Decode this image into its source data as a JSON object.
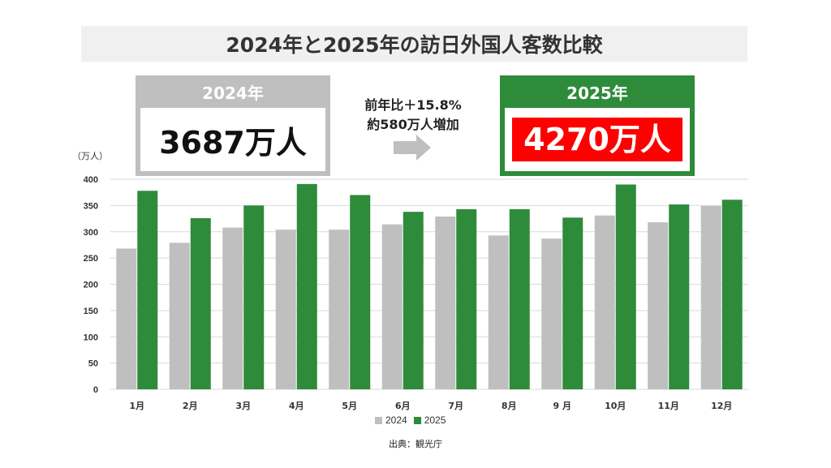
{
  "title": "2024年と2025年の訪日外国人客数比較",
  "box_2024": {
    "year_label": "2024年",
    "total": "3687万人"
  },
  "box_2025": {
    "year_label": "2025年",
    "total": "4270万人"
  },
  "comparison": {
    "line1": "前年比＋15.8%",
    "line2": "約580万人増加"
  },
  "source": "出典：観光庁",
  "colors": {
    "series_2024": "#bfbfbf",
    "series_2025": "#2e8b3a",
    "highlight": "#ff0000"
  },
  "chart_data": {
    "type": "bar",
    "unit_label": "（万人）",
    "categories": [
      "1月",
      "2月",
      "3月",
      "4月",
      "5月",
      "6月",
      "7月",
      "8月",
      "9 月",
      "10月",
      "11月",
      "12月"
    ],
    "series": [
      {
        "name": "2024",
        "values": [
          268,
          279,
          308,
          304,
          304,
          314,
          329,
          293,
          287,
          331,
          318,
          349
        ]
      },
      {
        "name": "2025",
        "values": [
          378,
          326,
          350,
          391,
          370,
          338,
          343,
          343,
          327,
          390,
          352,
          361
        ]
      }
    ],
    "ylim": [
      0,
      400
    ],
    "yticks": [
      0,
      50,
      100,
      150,
      200,
      250,
      300,
      350,
      400
    ],
    "grid": true,
    "legend_position": "bottom"
  }
}
